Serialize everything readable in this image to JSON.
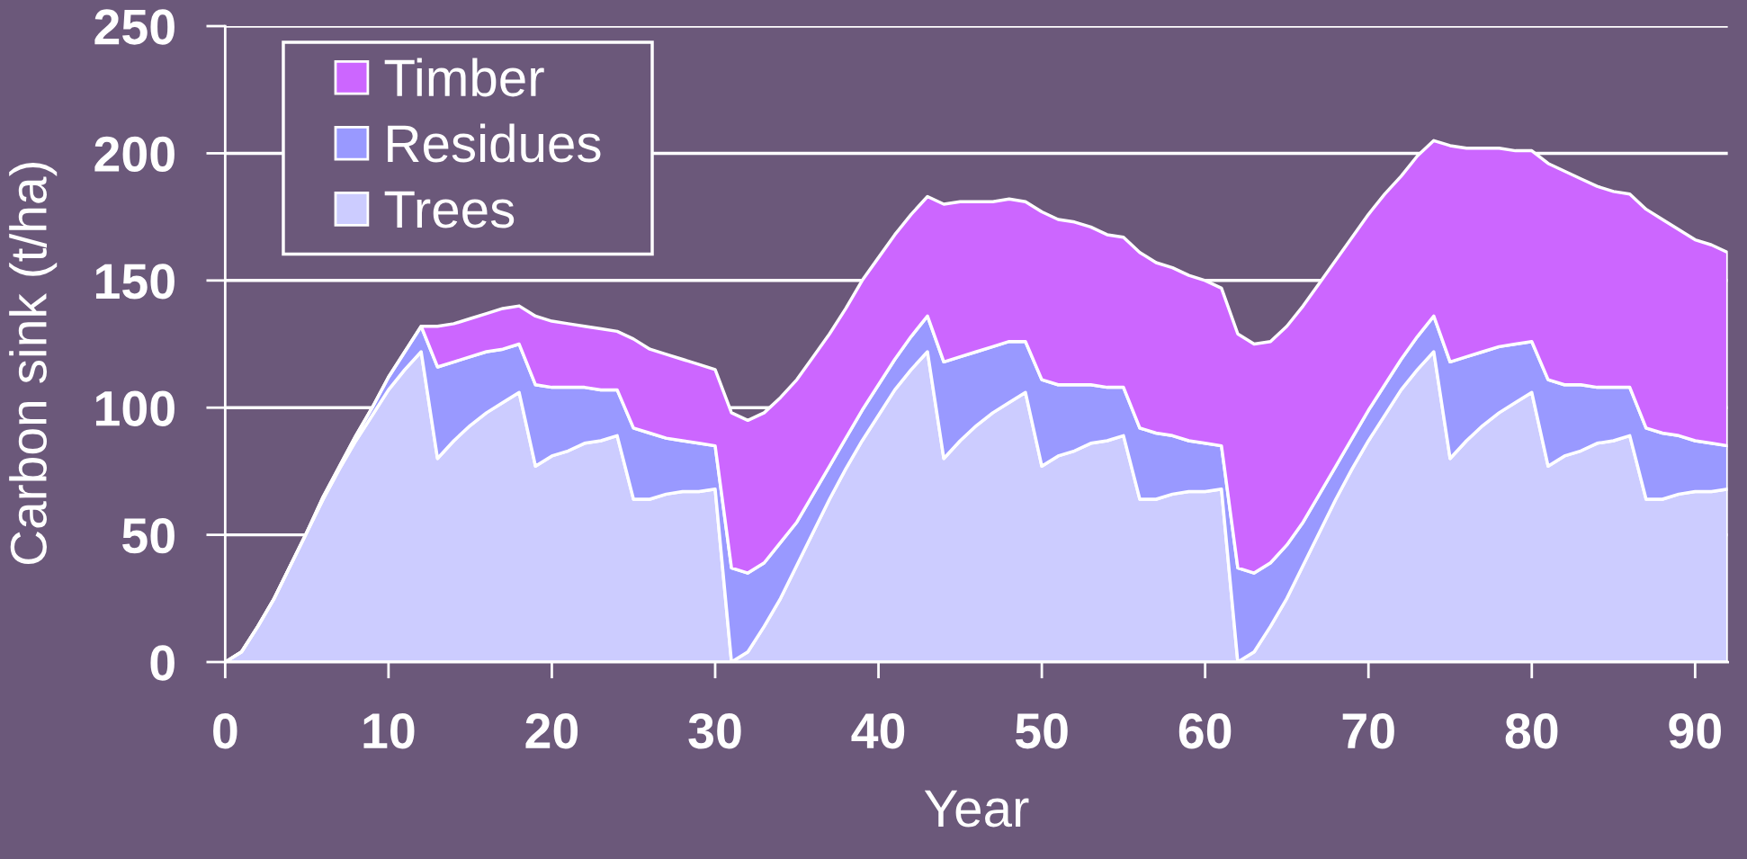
{
  "chart_data": {
    "type": "area",
    "stacked": true,
    "xlabel": "Year",
    "ylabel": "Carbon sink (t/ha)",
    "x": [
      0,
      1,
      2,
      3,
      4,
      5,
      6,
      7,
      8,
      9,
      10,
      11,
      12,
      13,
      14,
      15,
      16,
      17,
      18,
      19,
      20,
      21,
      22,
      23,
      24,
      25,
      26,
      27,
      28,
      29,
      30,
      31,
      32,
      33,
      34,
      35,
      36,
      37,
      38,
      39,
      40,
      41,
      42,
      43,
      44,
      45,
      46,
      47,
      48,
      49,
      50,
      51,
      52,
      53,
      54,
      55,
      56,
      57,
      58,
      59,
      60,
      61,
      62,
      63,
      64,
      65,
      66,
      67,
      68,
      69,
      70,
      71,
      72,
      73,
      74,
      75,
      76,
      77,
      78,
      79,
      80,
      81,
      82,
      83,
      84,
      85,
      86,
      87,
      88,
      89,
      90,
      91,
      92
    ],
    "xlim": [
      0,
      92
    ],
    "xticks": [
      0,
      10,
      20,
      30,
      40,
      50,
      60,
      70,
      80,
      90
    ],
    "ylim": [
      0,
      250
    ],
    "yticks": [
      0,
      50,
      100,
      150,
      200,
      250
    ],
    "grid": "y",
    "legend": "top left",
    "series": [
      {
        "name": "Trees",
        "color": "#ccccff",
        "values": [
          0,
          4,
          14,
          25,
          38,
          51,
          64,
          76,
          87,
          97,
          107,
          115,
          122,
          80,
          87,
          93,
          98,
          102,
          106,
          77,
          81,
          83,
          86,
          87,
          89,
          64,
          64,
          66,
          67,
          67,
          68,
          0,
          4,
          14,
          25,
          38,
          51,
          64,
          76,
          87,
          97,
          107,
          115,
          122,
          80,
          87,
          93,
          98,
          102,
          106,
          77,
          81,
          83,
          86,
          87,
          89,
          64,
          64,
          66,
          67,
          67,
          68,
          0,
          4,
          14,
          25,
          38,
          51,
          64,
          76,
          87,
          97,
          107,
          115,
          122,
          80,
          87,
          93,
          98,
          102,
          106,
          77,
          81,
          83,
          86,
          87,
          89,
          64,
          64,
          66,
          67,
          67,
          68
        ]
      },
      {
        "name": "Residues",
        "color": "#9999ff",
        "values": [
          0,
          0,
          0,
          0,
          0,
          0,
          1,
          1,
          2,
          3,
          5,
          7,
          10,
          36,
          31,
          27,
          24,
          21,
          19,
          32,
          27,
          25,
          22,
          20,
          18,
          28,
          26,
          22,
          20,
          19,
          17,
          37,
          31,
          25,
          22,
          17,
          15,
          13,
          12,
          12,
          12,
          12,
          13,
          14,
          38,
          33,
          29,
          26,
          24,
          20,
          34,
          28,
          26,
          23,
          21,
          19,
          28,
          26,
          23,
          20,
          19,
          17,
          37,
          31,
          25,
          21,
          17,
          15,
          13,
          12,
          12,
          12,
          12,
          13,
          14,
          38,
          33,
          29,
          26,
          23,
          20,
          34,
          28,
          26,
          22,
          21,
          19,
          28,
          26,
          23,
          20,
          19,
          17
        ]
      },
      {
        "name": "Timber",
        "color": "#cc66ff",
        "values": [
          0,
          0,
          0,
          0,
          0,
          0,
          0,
          0,
          0,
          0,
          0,
          0,
          0,
          16,
          15,
          15,
          15,
          16,
          15,
          27,
          26,
          25,
          24,
          24,
          23,
          35,
          33,
          33,
          32,
          31,
          30,
          61,
          60,
          59,
          57,
          56,
          54,
          52,
          51,
          51,
          50,
          49,
          48,
          47,
          62,
          61,
          59,
          57,
          56,
          55,
          66,
          65,
          64,
          62,
          60,
          59,
          69,
          67,
          66,
          65,
          64,
          62,
          92,
          90,
          87,
          86,
          85,
          83,
          81,
          79,
          77,
          75,
          72,
          71,
          69,
          85,
          82,
          80,
          78,
          76,
          75,
          85,
          84,
          81,
          79,
          77,
          76,
          86,
          84,
          81,
          79,
          78,
          76
        ]
      }
    ]
  }
}
